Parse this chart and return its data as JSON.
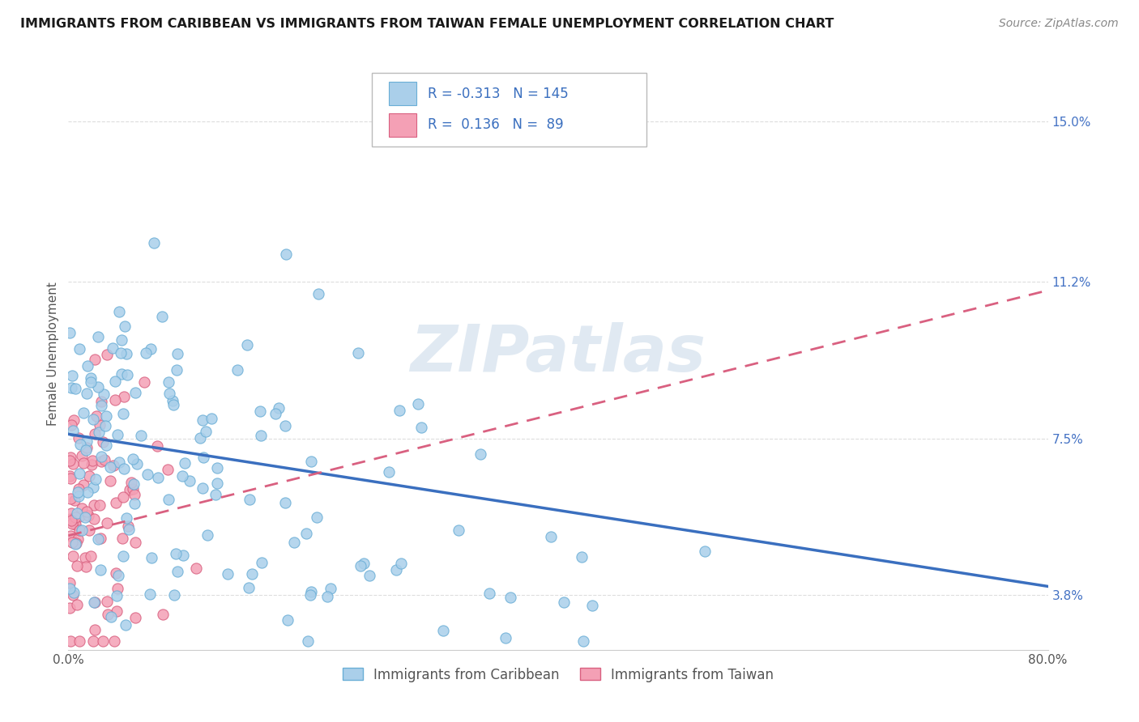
{
  "title": "IMMIGRANTS FROM CARIBBEAN VS IMMIGRANTS FROM TAIWAN FEMALE UNEMPLOYMENT CORRELATION CHART",
  "source": "Source: ZipAtlas.com",
  "ylabel": "Female Unemployment",
  "watermark": "ZIPatlas",
  "xlim": [
    0.0,
    0.8
  ],
  "ylim": [
    0.025,
    0.165
  ],
  "xtick_positions": [
    0.0,
    0.1,
    0.2,
    0.3,
    0.4,
    0.5,
    0.6,
    0.7,
    0.8
  ],
  "xtick_labels": [
    "0.0%",
    "",
    "",
    "",
    "",
    "",
    "",
    "",
    "80.0%"
  ],
  "ytick_vals": [
    0.038,
    0.075,
    0.112,
    0.15
  ],
  "ytick_labels": [
    "3.8%",
    "7.5%",
    "11.2%",
    "15.0%"
  ],
  "series": [
    {
      "name": "Immigrants from Caribbean",
      "R": -0.313,
      "N": 145,
      "color": "#aacfea",
      "edge_color": "#6aaed6",
      "line_color": "#3a6fbf",
      "line_style": "solid"
    },
    {
      "name": "Immigrants from Taiwan",
      "R": 0.136,
      "N": 89,
      "color": "#f4a0b5",
      "edge_color": "#d96080",
      "line_color": "#d96080",
      "line_style": "dashed"
    }
  ],
  "carib_line_x0": 0.0,
  "carib_line_y0": 0.076,
  "carib_line_x1": 0.8,
  "carib_line_y1": 0.04,
  "taiwan_line_x0": 0.0,
  "taiwan_line_y0": 0.052,
  "taiwan_line_x1": 0.8,
  "taiwan_line_y1": 0.11,
  "background_color": "#ffffff",
  "grid_color": "#dddddd",
  "title_fontsize": 11.5,
  "source_fontsize": 10,
  "axis_label_fontsize": 11,
  "tick_fontsize": 11
}
